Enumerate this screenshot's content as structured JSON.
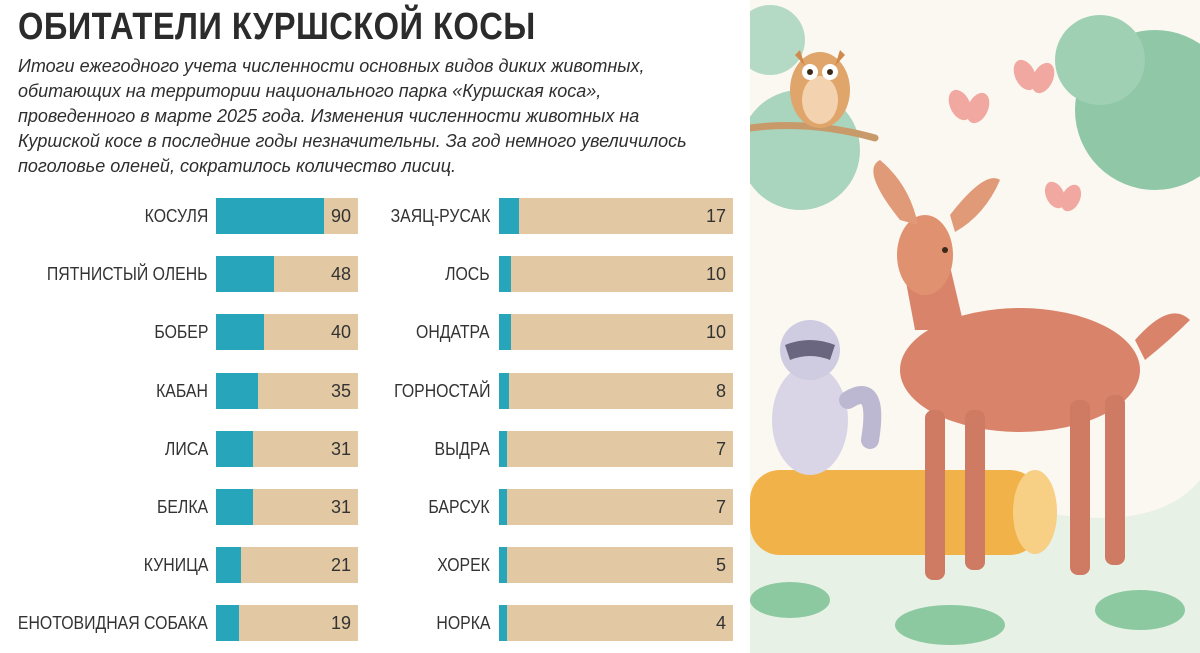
{
  "title": "ОБИТАТЕЛИ КУРШСКОЙ КОСЫ",
  "subtitle": "Итоги ежегодного учета численности основных видов диких животных, обитающих на территории национального парка «Куршская коса», проведенного в марте 2025 года. Изменения численности животных на Куршской косе в последние годы незначительны. За год немного увеличилось поголовье оленей, сократилось количество лисиц.",
  "colors": {
    "fill": "#27a5bb",
    "track": "#e2c9a4",
    "text": "#333333"
  },
  "illustration": {
    "icons": [
      "owl-icon",
      "deer-icon",
      "raccoon-icon",
      "butterfly-icon",
      "log-icon",
      "tree-icon"
    ]
  },
  "chart_data": [
    {
      "type": "bar",
      "orientation": "horizontal",
      "categories": [
        "КОСУЛЯ",
        "ПЯТНИСТЫЙ ОЛЕНЬ",
        "БОБЕР",
        "КАБАН",
        "ЛИСА",
        "БЕЛКА",
        "КУНИЦА",
        "ЕНОТОВИДНАЯ СОБАКА"
      ],
      "values": [
        90,
        48,
        40,
        35,
        31,
        31,
        21,
        19
      ]
    },
    {
      "type": "bar",
      "orientation": "horizontal",
      "categories": [
        "ЗАЯЦ-РУСАК",
        "ЛОСЬ",
        "ОНДАТРА",
        "ГОРНОСТАЙ",
        "ВЫДРА",
        "БАРСУК",
        "ХОРЕК",
        "НОРКА"
      ],
      "values": [
        17,
        10,
        10,
        8,
        7,
        7,
        5,
        4
      ]
    }
  ]
}
